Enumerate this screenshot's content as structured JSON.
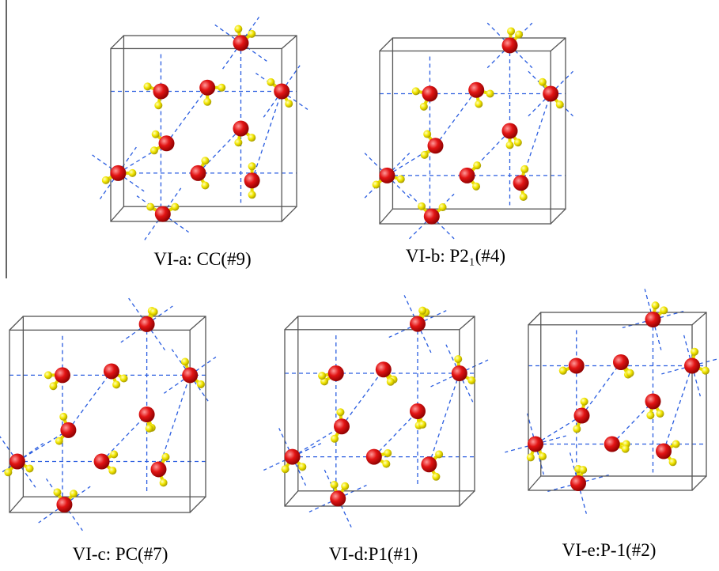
{
  "panels": [
    {
      "label": "VI-a: CC(#9)"
    },
    {
      "label": "VI-b: P2₁(#4)"
    },
    {
      "label": "VI-c: PC(#7)"
    },
    {
      "label": "VI-d:P1(#1)"
    },
    {
      "label": "VI-e:P-1(#2)"
    }
  ]
}
